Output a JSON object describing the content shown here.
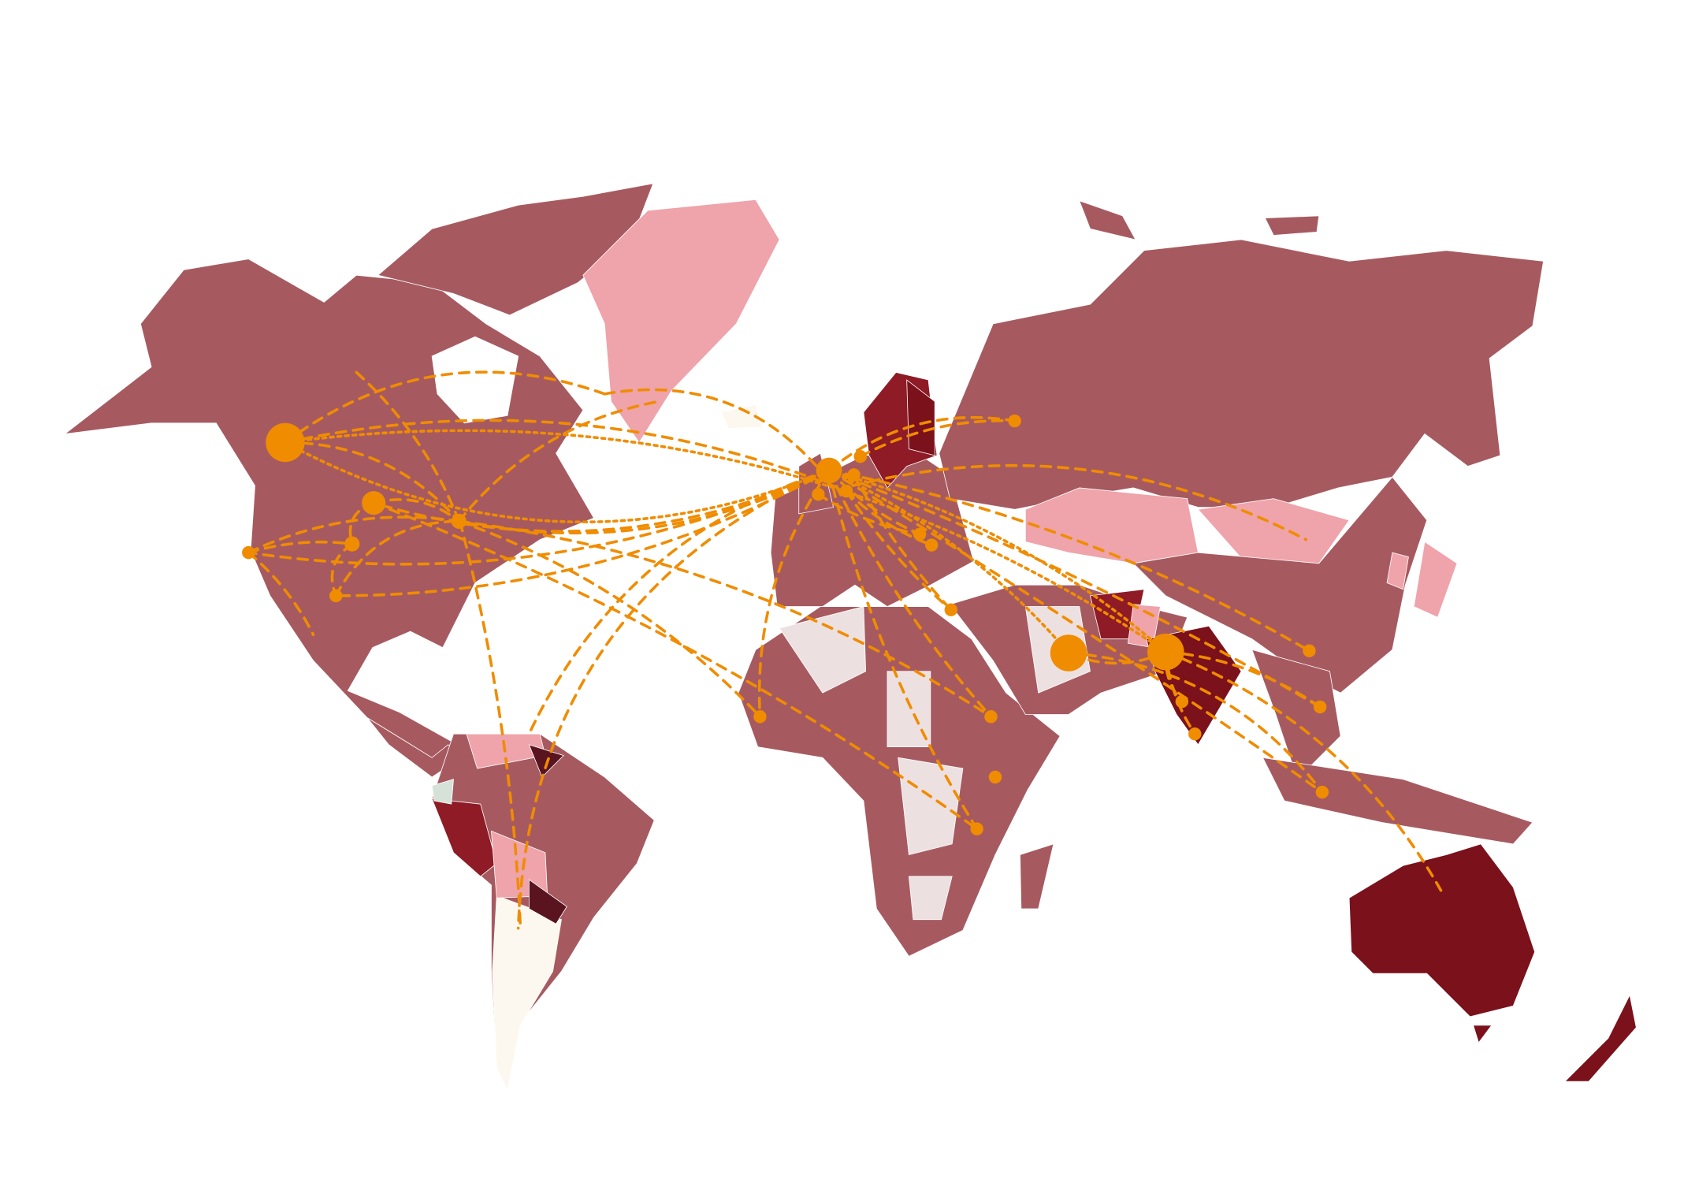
{
  "map": {
    "projection": "world",
    "colors": {
      "background": "#ffffff",
      "default_country": "#a65a60",
      "light_pink": "#efa3aa",
      "pale": "#ede0e1",
      "cream": "#fdf8ef",
      "red": "#8e1b26",
      "dark_red": "#7b111b",
      "darkest": "#5a1420",
      "light_green": "#d6e2d8",
      "link": "#f08c00",
      "node": "#f08c00"
    }
  }
}
